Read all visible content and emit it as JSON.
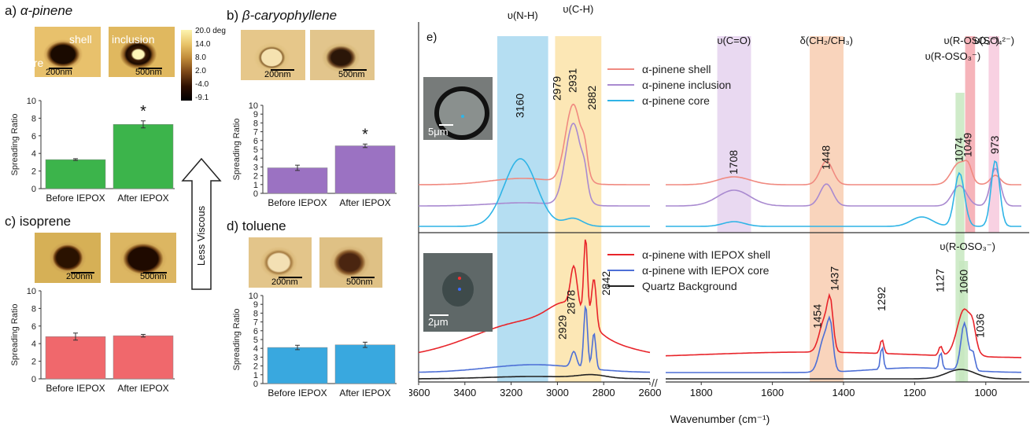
{
  "panels": {
    "a": {
      "letter": "a)",
      "name": "α-pinene",
      "labels": {
        "shell": "shell",
        "inclusion": "inclusion",
        "core": "core"
      },
      "scale_before": "200nm",
      "scale_after": "500nm",
      "sig": "*"
    },
    "b": {
      "letter": "b)",
      "name": "β-caryophyllene",
      "scale_before": "200nm",
      "scale_after": "500nm",
      "sig": "*"
    },
    "c": {
      "letter": "c)",
      "name": "isoprene",
      "scale_before": "200nm",
      "scale_after": "500nm"
    },
    "d": {
      "letter": "d)",
      "name": "toluene",
      "scale_before": "200nm",
      "scale_after": "500nm"
    },
    "colorbar": {
      "ticks": [
        "20.0 deg",
        "14.0",
        "8.0",
        "2.0",
        "-4.0",
        "-9.1"
      ]
    },
    "arrow_label": "Less Viscous",
    "e": {
      "letter": "e)",
      "inset_top_scale": "5μm",
      "inset_bottom_scale": "2μm"
    }
  },
  "chart_data": [
    {
      "type": "bar",
      "panel": "a",
      "ylabel": "Spreading Ratio",
      "ylim": [
        0,
        10
      ],
      "yticks": [
        0,
        2,
        4,
        6,
        8,
        10
      ],
      "categories": [
        "Before IEPOX",
        "After IEPOX"
      ],
      "values": [
        3.3,
        7.3
      ],
      "errors": [
        0.1,
        0.4
      ],
      "color": "#3cb44b"
    },
    {
      "type": "bar",
      "panel": "b",
      "ylabel": "Spreading Ratio",
      "ylim": [
        0,
        10
      ],
      "yticks": [
        0,
        1,
        2,
        3,
        4,
        5,
        6,
        7,
        8,
        9,
        10
      ],
      "categories": [
        "Before IEPOX",
        "After IEPOX"
      ],
      "values": [
        2.9,
        5.4
      ],
      "errors": [
        0.3,
        0.2
      ],
      "color": "#9b72c2"
    },
    {
      "type": "bar",
      "panel": "c",
      "ylabel": "Spreading Ratio",
      "ylim": [
        0,
        10
      ],
      "yticks": [
        0,
        2,
        4,
        6,
        8,
        10
      ],
      "categories": [
        "Before IEPOX",
        "After IEPOX"
      ],
      "values": [
        4.8,
        4.9
      ],
      "errors": [
        0.4,
        0.15
      ],
      "color": "#f0686c"
    },
    {
      "type": "bar",
      "panel": "d",
      "ylabel": "Spreading Ratio",
      "ylim": [
        0,
        10
      ],
      "yticks": [
        0,
        1,
        2,
        3,
        4,
        5,
        6,
        7,
        8,
        9,
        10
      ],
      "categories": [
        "Before IEPOX",
        "After IEPOX"
      ],
      "values": [
        4.1,
        4.4
      ],
      "errors": [
        0.25,
        0.3
      ],
      "color": "#39a8df"
    },
    {
      "type": "line",
      "panel": "e",
      "xlabel": "Wavenumber (cm⁻¹)",
      "x_ticks_left": [
        3600,
        3400,
        3200,
        3000,
        2800,
        2600
      ],
      "x_ticks_right": [
        1800,
        1600,
        1400,
        1200,
        1000
      ],
      "bands": [
        {
          "label": "υ(N-H)",
          "from": 3260,
          "to": 3040,
          "color": "#a8d8f0"
        },
        {
          "label": "υ(C-H)",
          "from": 3010,
          "to": 2810,
          "color": "#fbe3a8"
        },
        {
          "label": "υ(C=O)",
          "from": 1755,
          "to": 1660,
          "color": "#e5d2ee"
        },
        {
          "label": "δ(CH₂/CH₃)",
          "from": 1495,
          "to": 1400,
          "color": "#f8cdb0"
        },
        {
          "label": "υ(R-OSO₃⁻)",
          "from": 1085,
          "to": 1060,
          "color": "#c7e8c0"
        },
        {
          "label": "υ(HSO₄⁻)",
          "from": 1058,
          "to": 1030,
          "color": "#f4a7ae"
        },
        {
          "label": "υ(SO₄²⁻)",
          "from": 992,
          "to": 962,
          "color": "#f7c9dd"
        },
        {
          "label": "υ(R-OSO₃⁻)",
          "from": 1075,
          "to": 1050,
          "color": "#c7e8c0"
        }
      ],
      "peak_labels_top": [
        "3160",
        "2979",
        "2931",
        "2882",
        "1708",
        "1448",
        "1074",
        "1049",
        "973"
      ],
      "peak_labels_bottom": [
        "2878",
        "2929",
        "2842",
        "1454",
        "1437",
        "1292",
        "1127",
        "1060",
        "1036"
      ],
      "series": [
        {
          "name": "α-pinene shell",
          "color": "#f08a80",
          "group": "top"
        },
        {
          "name": "α-pinene inclusion",
          "color": "#a98ad0",
          "group": "top"
        },
        {
          "name": "α-pinene core",
          "color": "#2fb4e6",
          "group": "top"
        },
        {
          "name": "α-pinene with IEPOX shell",
          "color": "#e8242a",
          "group": "bottom"
        },
        {
          "name": "α-pinene with IEPOX core",
          "color": "#4d6fd6",
          "group": "bottom"
        },
        {
          "name": "Quartz Background",
          "color": "#222222",
          "group": "bottom"
        }
      ]
    }
  ]
}
